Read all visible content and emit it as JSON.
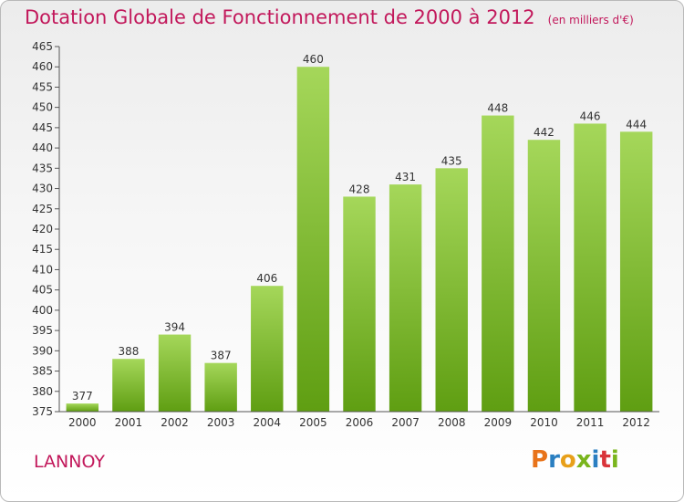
{
  "header": {
    "title": "Dotation Globale de Fonctionnement de 2000 à 2012",
    "subtitle": "(en milliers d'€)"
  },
  "footer": {
    "city": "LANNOY",
    "logo_text": "Proxiti",
    "logo_colors": [
      "#e8731a",
      "#2a7fc1",
      "#e8a01a",
      "#7ab51d",
      "#2a7fc1",
      "#d9343a",
      "#7ab51d"
    ]
  },
  "colors": {
    "bar_top": "#a5d75a",
    "bar_bottom": "#5f9e12",
    "title": "#c2185b",
    "axis": "#555555"
  },
  "chart_data": {
    "type": "bar",
    "title": "Dotation Globale de Fonctionnement de 2000 à 2012",
    "subtitle": "(en milliers d'€)",
    "categories": [
      "2000",
      "2001",
      "2002",
      "2003",
      "2004",
      "2005",
      "2006",
      "2007",
      "2008",
      "2009",
      "2010",
      "2011",
      "2012"
    ],
    "values": [
      377,
      388,
      394,
      387,
      406,
      460,
      428,
      431,
      435,
      448,
      442,
      446,
      444
    ],
    "ylim": [
      375,
      465
    ],
    "yticks": [
      375,
      380,
      385,
      390,
      395,
      400,
      405,
      410,
      415,
      420,
      425,
      430,
      435,
      440,
      445,
      450,
      455,
      460,
      465
    ],
    "grid": false,
    "data_labels": true
  }
}
